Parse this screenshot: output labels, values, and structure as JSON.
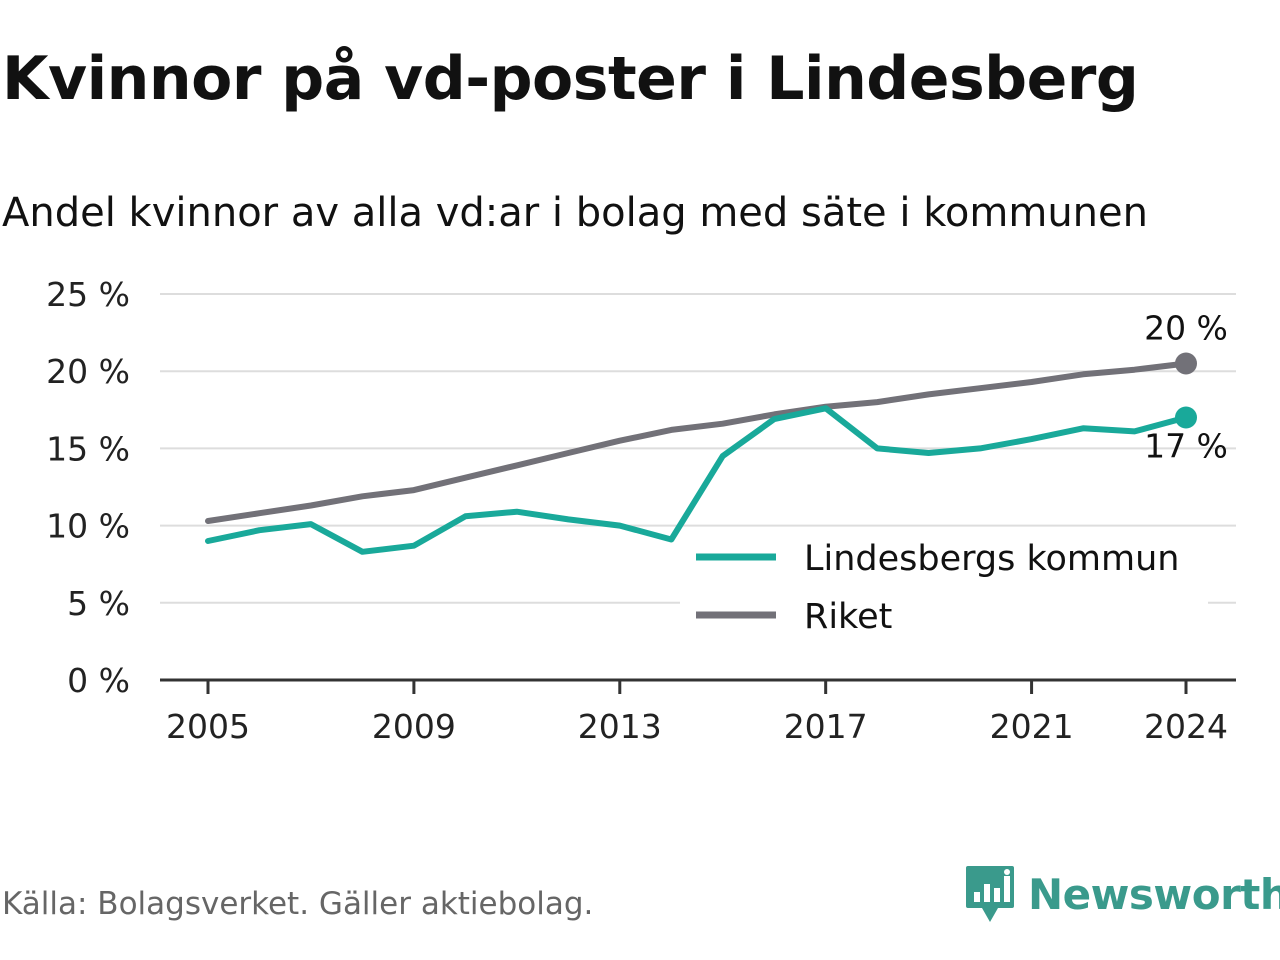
{
  "title": "Kvinnor på vd-poster i Lindesberg",
  "subtitle": "Andel kvinnor av alla vd:ar i bolag med säte i kommunen",
  "source": "Källa: Bolagsverket. Gäller aktiebolag.",
  "brand": {
    "name": "Newsworthy",
    "icon": "newsworthy-logo-icon",
    "color": "#3a9a8c"
  },
  "chart_data": {
    "type": "line",
    "x": [
      2005,
      2006,
      2007,
      2008,
      2009,
      2010,
      2011,
      2012,
      2013,
      2014,
      2015,
      2016,
      2017,
      2018,
      2019,
      2020,
      2021,
      2022,
      2023,
      2024
    ],
    "series": [
      {
        "name": "Lindesbergs kommun",
        "color": "#19a99a",
        "values": [
          9.0,
          9.7,
          10.1,
          8.3,
          8.7,
          10.6,
          10.9,
          10.4,
          10.0,
          9.1,
          14.5,
          16.9,
          17.6,
          15.0,
          14.7,
          15.0,
          15.6,
          16.3,
          16.1,
          17.0
        ],
        "end_label": "17 %"
      },
      {
        "name": "Riket",
        "color": "#727178",
        "values": [
          10.3,
          10.8,
          11.3,
          11.9,
          12.3,
          13.1,
          13.9,
          14.7,
          15.5,
          16.2,
          16.6,
          17.2,
          17.7,
          18.0,
          18.5,
          18.9,
          19.3,
          19.8,
          20.1,
          20.5
        ],
        "end_label": "20 %"
      }
    ],
    "x_ticks": [
      "2005",
      "2009",
      "2013",
      "2017",
      "2021",
      "2024"
    ],
    "x_tick_values": [
      2005,
      2009,
      2013,
      2017,
      2021,
      2024
    ],
    "y_ticks": [
      0,
      5,
      10,
      15,
      20,
      25
    ],
    "y_tick_labels": [
      "0 %",
      "5 %",
      "10 %",
      "15 %",
      "20 %",
      "25 %"
    ],
    "ylim": [
      0,
      25
    ],
    "xlim": [
      2004,
      2025
    ],
    "grid": true,
    "legend_position": "bottom-right"
  }
}
